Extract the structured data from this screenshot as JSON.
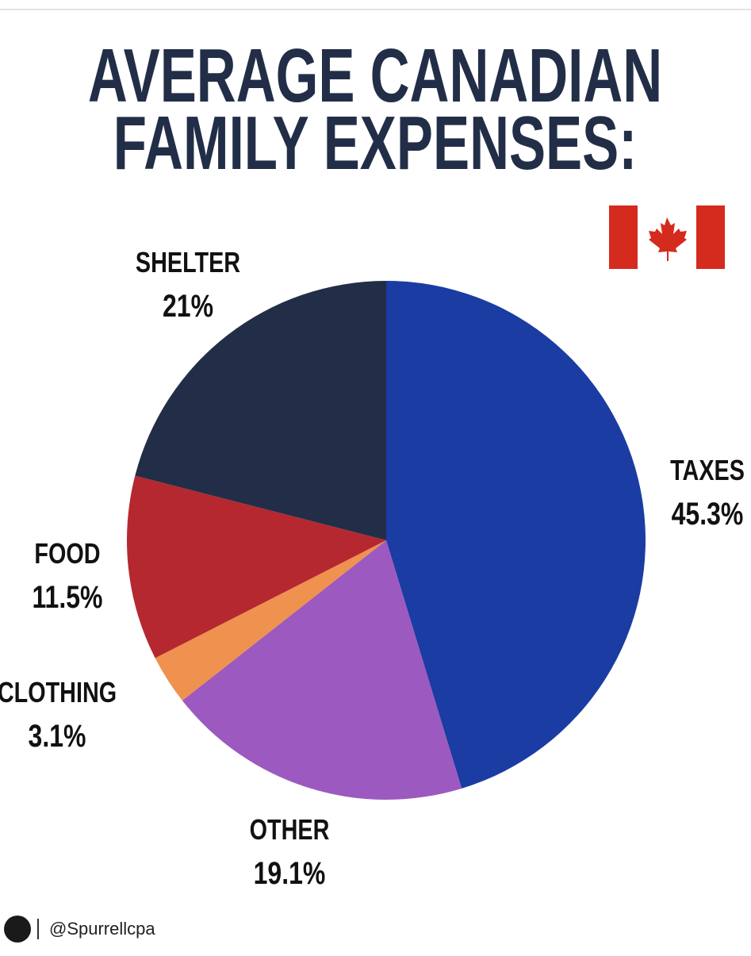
{
  "chart_data": {
    "type": "pie",
    "title": [
      "AVERAGE CANADIAN",
      "FAMILY EXPENSES:"
    ],
    "categories": [
      "TAXES",
      "OTHER",
      "CLOTHING",
      "FOOD",
      "SHELTER"
    ],
    "values": [
      45.3,
      19.1,
      3.1,
      11.5,
      21
    ],
    "value_labels": [
      "45.3%",
      "19.1%",
      "3.1%",
      "11.5%",
      "21%"
    ],
    "colors": [
      "#1b3ca2",
      "#9c59bf",
      "#ef914f",
      "#b5282f",
      "#222e47"
    ]
  },
  "footer": {
    "handle": "@Spurrellcpa"
  }
}
